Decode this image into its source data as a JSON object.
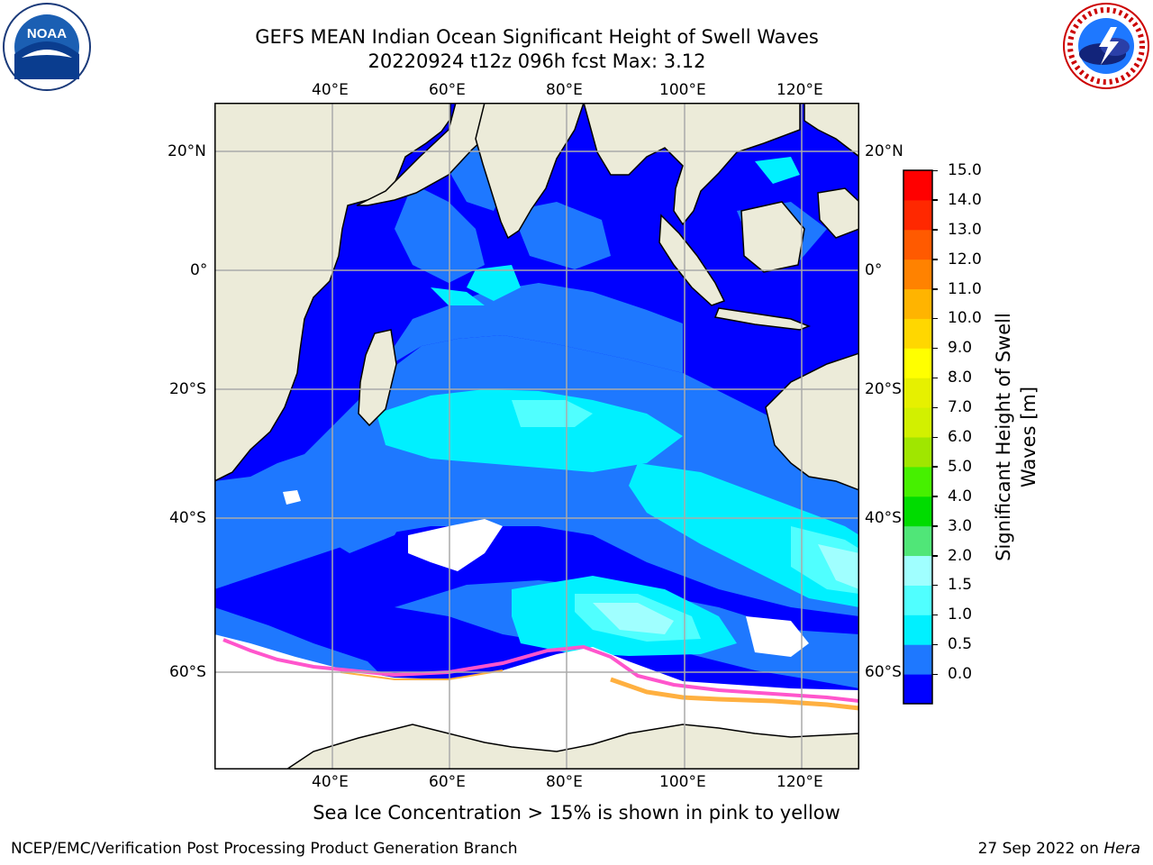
{
  "title": {
    "line1": "GEFS MEAN Indian Ocean Significant Height of Swell Waves",
    "line2": "20220924 t12z 096h fcst   Max: 3.12"
  },
  "logos": {
    "left": {
      "text": "NOAA",
      "icon": "noaa-logo-icon"
    },
    "right": {
      "icon": "nws-logo-icon"
    }
  },
  "map": {
    "lon_labels": [
      "40°E",
      "60°E",
      "80°E",
      "100°E",
      "120°E"
    ],
    "lat_labels": [
      "20°N",
      "0°",
      "20°S",
      "40°S",
      "60°S"
    ],
    "colors": {
      "land": "#ecebd9",
      "ocean_low": "#0000ff",
      "ocean_mid": "#1e78ff",
      "ocean_high": "#00f0ff",
      "ocean_top": "#8ffbff",
      "sea_ice": "#ffffff",
      "ice_edge_pink": "#ff55cc",
      "ice_edge_orange": "#ffb040",
      "grid": "#aaaaaa"
    }
  },
  "colorbar": {
    "label": "Significant Height of Swell Waves [m]",
    "ticks": [
      "15.0",
      "14.0",
      "13.0",
      "12.0",
      "11.0",
      "10.0",
      "9.0",
      "8.0",
      "7.0",
      "6.0",
      "5.0",
      "4.0",
      "3.0",
      "2.0",
      "1.5",
      "1.0",
      "0.5",
      "0.0"
    ],
    "colors": [
      "#0000ff",
      "#1e78ff",
      "#00f0ff",
      "#50ffff",
      "#a0ffff",
      "#50e678",
      "#00dc00",
      "#46f000",
      "#a0e600",
      "#d2f000",
      "#e6f000",
      "#ffff00",
      "#ffd700",
      "#ffb400",
      "#ff8200",
      "#ff5a00",
      "#ff2800",
      "#ff0000"
    ]
  },
  "caption": "Sea Ice Concentration > 15% is shown in pink to yellow",
  "footer": {
    "left": "NCEP/EMC/Verification Post Processing Product Generation Branch",
    "right_date": "27 Sep 2022 on ",
    "right_host": "Hera"
  }
}
